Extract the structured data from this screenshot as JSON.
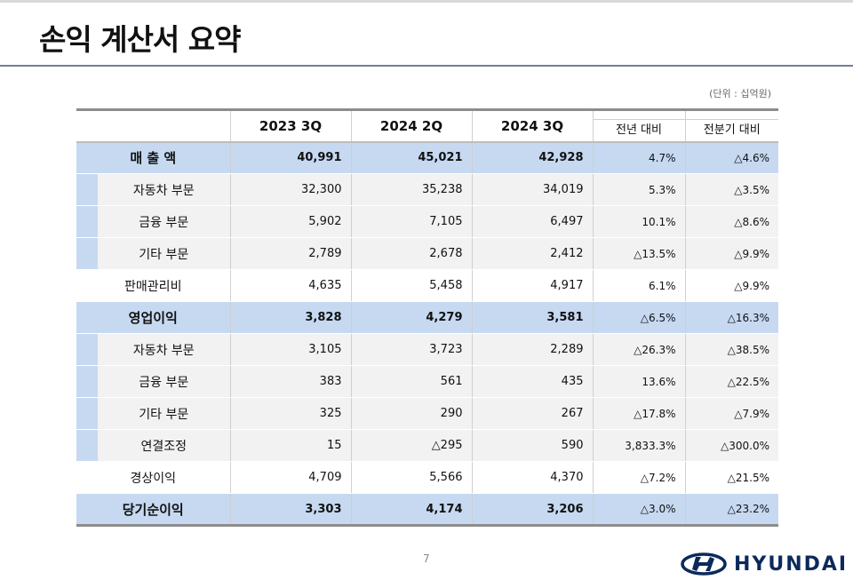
{
  "title": "손익 계산서 요약",
  "unit": "(단위 : 십억원)",
  "headers": [
    "",
    "2023 3Q",
    "2024 2Q",
    "2024 3Q",
    "전년 대비",
    "전분기 대비"
  ],
  "rows": [
    {
      "type": "main",
      "cells": [
        "매 출 액",
        "40,991",
        "45,021",
        "42,928",
        "4.7%",
        "△4.6%"
      ]
    },
    {
      "type": "sub",
      "cells": [
        "자동차 부문",
        "32,300",
        "35,238",
        "34,019",
        "5.3%",
        "△3.5%"
      ]
    },
    {
      "type": "sub",
      "cells": [
        "금융 부문",
        "5,902",
        "7,105",
        "6,497",
        "10.1%",
        "△8.6%"
      ]
    },
    {
      "type": "sub",
      "cells": [
        "기타 부문",
        "2,789",
        "2,678",
        "2,412",
        "△13.5%",
        "△9.9%"
      ]
    },
    {
      "type": "plain",
      "cells": [
        "판매관리비",
        "4,635",
        "5,458",
        "4,917",
        "6.1%",
        "△9.9%"
      ]
    },
    {
      "type": "main",
      "cells": [
        "영업이익",
        "3,828",
        "4,279",
        "3,581",
        "△6.5%",
        "△16.3%"
      ]
    },
    {
      "type": "sub",
      "cells": [
        "자동차 부문",
        "3,105",
        "3,723",
        "2,289",
        "△26.3%",
        "△38.5%"
      ]
    },
    {
      "type": "sub",
      "cells": [
        "금융 부문",
        "383",
        "561",
        "435",
        "13.6%",
        "△22.5%"
      ]
    },
    {
      "type": "sub",
      "cells": [
        "기타 부문",
        "325",
        "290",
        "267",
        "△17.8%",
        "△7.9%"
      ]
    },
    {
      "type": "sub",
      "cells": [
        "연결조정",
        "15",
        "△295",
        "590",
        "3,833.3%",
        "△300.0%"
      ]
    },
    {
      "type": "plain",
      "cells": [
        "경상이익",
        "4,709",
        "5,566",
        "4,370",
        "△7.2%",
        "△21.5%"
      ]
    },
    {
      "type": "main",
      "cells": [
        "당기순이익",
        "3,303",
        "4,174",
        "3,206",
        "△3.0%",
        "△23.2%"
      ]
    }
  ],
  "page_number": "7",
  "logo": {
    "text": "HYUNDAI",
    "icon": "hyundai-logo-icon",
    "color": "#0b2a5b"
  },
  "colors": {
    "highlight": "#c6d9f1",
    "sub_row": "#f2f2f2"
  }
}
